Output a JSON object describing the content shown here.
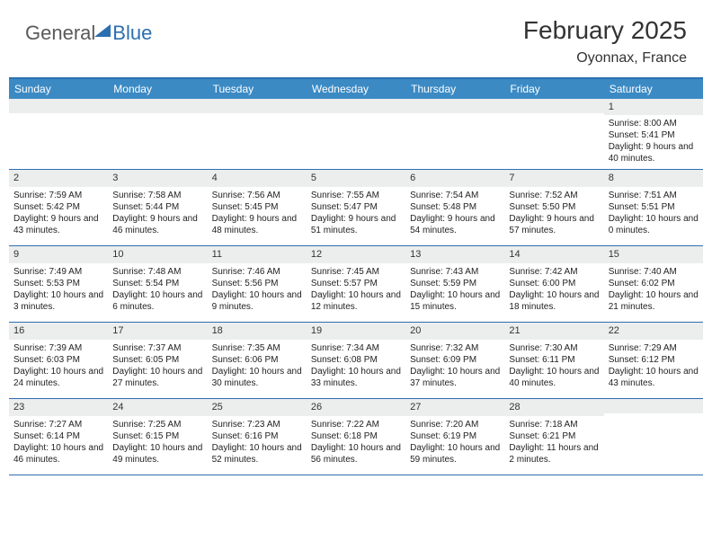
{
  "logo": {
    "part1": "General",
    "part2": "Blue"
  },
  "title": "February 2025",
  "location": "Oyonnax, France",
  "dow_header_bg": "#3b8ac4",
  "accent_color": "#2c6fb0",
  "daynum_bg": "#eceded",
  "dow": [
    "Sunday",
    "Monday",
    "Tuesday",
    "Wednesday",
    "Thursday",
    "Friday",
    "Saturday"
  ],
  "weeks": [
    [
      {
        "n": "",
        "sr": "",
        "ss": "",
        "dl": ""
      },
      {
        "n": "",
        "sr": "",
        "ss": "",
        "dl": ""
      },
      {
        "n": "",
        "sr": "",
        "ss": "",
        "dl": ""
      },
      {
        "n": "",
        "sr": "",
        "ss": "",
        "dl": ""
      },
      {
        "n": "",
        "sr": "",
        "ss": "",
        "dl": ""
      },
      {
        "n": "",
        "sr": "",
        "ss": "",
        "dl": ""
      },
      {
        "n": "1",
        "sr": "Sunrise: 8:00 AM",
        "ss": "Sunset: 5:41 PM",
        "dl": "Daylight: 9 hours and 40 minutes."
      }
    ],
    [
      {
        "n": "2",
        "sr": "Sunrise: 7:59 AM",
        "ss": "Sunset: 5:42 PM",
        "dl": "Daylight: 9 hours and 43 minutes."
      },
      {
        "n": "3",
        "sr": "Sunrise: 7:58 AM",
        "ss": "Sunset: 5:44 PM",
        "dl": "Daylight: 9 hours and 46 minutes."
      },
      {
        "n": "4",
        "sr": "Sunrise: 7:56 AM",
        "ss": "Sunset: 5:45 PM",
        "dl": "Daylight: 9 hours and 48 minutes."
      },
      {
        "n": "5",
        "sr": "Sunrise: 7:55 AM",
        "ss": "Sunset: 5:47 PM",
        "dl": "Daylight: 9 hours and 51 minutes."
      },
      {
        "n": "6",
        "sr": "Sunrise: 7:54 AM",
        "ss": "Sunset: 5:48 PM",
        "dl": "Daylight: 9 hours and 54 minutes."
      },
      {
        "n": "7",
        "sr": "Sunrise: 7:52 AM",
        "ss": "Sunset: 5:50 PM",
        "dl": "Daylight: 9 hours and 57 minutes."
      },
      {
        "n": "8",
        "sr": "Sunrise: 7:51 AM",
        "ss": "Sunset: 5:51 PM",
        "dl": "Daylight: 10 hours and 0 minutes."
      }
    ],
    [
      {
        "n": "9",
        "sr": "Sunrise: 7:49 AM",
        "ss": "Sunset: 5:53 PM",
        "dl": "Daylight: 10 hours and 3 minutes."
      },
      {
        "n": "10",
        "sr": "Sunrise: 7:48 AM",
        "ss": "Sunset: 5:54 PM",
        "dl": "Daylight: 10 hours and 6 minutes."
      },
      {
        "n": "11",
        "sr": "Sunrise: 7:46 AM",
        "ss": "Sunset: 5:56 PM",
        "dl": "Daylight: 10 hours and 9 minutes."
      },
      {
        "n": "12",
        "sr": "Sunrise: 7:45 AM",
        "ss": "Sunset: 5:57 PM",
        "dl": "Daylight: 10 hours and 12 minutes."
      },
      {
        "n": "13",
        "sr": "Sunrise: 7:43 AM",
        "ss": "Sunset: 5:59 PM",
        "dl": "Daylight: 10 hours and 15 minutes."
      },
      {
        "n": "14",
        "sr": "Sunrise: 7:42 AM",
        "ss": "Sunset: 6:00 PM",
        "dl": "Daylight: 10 hours and 18 minutes."
      },
      {
        "n": "15",
        "sr": "Sunrise: 7:40 AM",
        "ss": "Sunset: 6:02 PM",
        "dl": "Daylight: 10 hours and 21 minutes."
      }
    ],
    [
      {
        "n": "16",
        "sr": "Sunrise: 7:39 AM",
        "ss": "Sunset: 6:03 PM",
        "dl": "Daylight: 10 hours and 24 minutes."
      },
      {
        "n": "17",
        "sr": "Sunrise: 7:37 AM",
        "ss": "Sunset: 6:05 PM",
        "dl": "Daylight: 10 hours and 27 minutes."
      },
      {
        "n": "18",
        "sr": "Sunrise: 7:35 AM",
        "ss": "Sunset: 6:06 PM",
        "dl": "Daylight: 10 hours and 30 minutes."
      },
      {
        "n": "19",
        "sr": "Sunrise: 7:34 AM",
        "ss": "Sunset: 6:08 PM",
        "dl": "Daylight: 10 hours and 33 minutes."
      },
      {
        "n": "20",
        "sr": "Sunrise: 7:32 AM",
        "ss": "Sunset: 6:09 PM",
        "dl": "Daylight: 10 hours and 37 minutes."
      },
      {
        "n": "21",
        "sr": "Sunrise: 7:30 AM",
        "ss": "Sunset: 6:11 PM",
        "dl": "Daylight: 10 hours and 40 minutes."
      },
      {
        "n": "22",
        "sr": "Sunrise: 7:29 AM",
        "ss": "Sunset: 6:12 PM",
        "dl": "Daylight: 10 hours and 43 minutes."
      }
    ],
    [
      {
        "n": "23",
        "sr": "Sunrise: 7:27 AM",
        "ss": "Sunset: 6:14 PM",
        "dl": "Daylight: 10 hours and 46 minutes."
      },
      {
        "n": "24",
        "sr": "Sunrise: 7:25 AM",
        "ss": "Sunset: 6:15 PM",
        "dl": "Daylight: 10 hours and 49 minutes."
      },
      {
        "n": "25",
        "sr": "Sunrise: 7:23 AM",
        "ss": "Sunset: 6:16 PM",
        "dl": "Daylight: 10 hours and 52 minutes."
      },
      {
        "n": "26",
        "sr": "Sunrise: 7:22 AM",
        "ss": "Sunset: 6:18 PM",
        "dl": "Daylight: 10 hours and 56 minutes."
      },
      {
        "n": "27",
        "sr": "Sunrise: 7:20 AM",
        "ss": "Sunset: 6:19 PM",
        "dl": "Daylight: 10 hours and 59 minutes."
      },
      {
        "n": "28",
        "sr": "Sunrise: 7:18 AM",
        "ss": "Sunset: 6:21 PM",
        "dl": "Daylight: 11 hours and 2 minutes."
      },
      {
        "n": "",
        "sr": "",
        "ss": "",
        "dl": ""
      }
    ]
  ]
}
